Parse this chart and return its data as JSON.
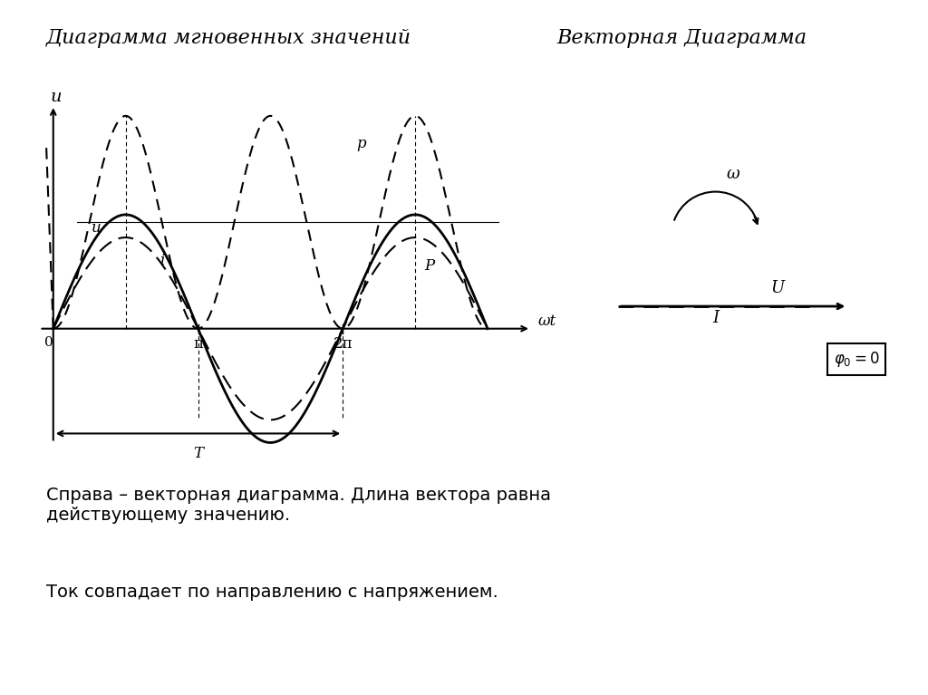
{
  "title_left": "Диаграмма мгновенных значений",
  "title_right": "Векторная Диаграмма",
  "text1": "Справа – векторная диаграмма. Длина вектора равна\nдействующему значению.",
  "text2": "Ток совпадает по направлению с напряжением.",
  "bg_color": "#ffffff",
  "amp_u": 0.75,
  "amp_i": 0.6,
  "amp_p": 1.4,
  "label_u": "u",
  "label_i": "i",
  "label_p": "p",
  "label_wt": "ωt",
  "label_pi": "π",
  "label_2pi": "2π",
  "label_T": "T",
  "label_0": "0",
  "label_omega": "ω",
  "label_U": "U",
  "label_I": "I",
  "label_phi": "φ₀=0"
}
